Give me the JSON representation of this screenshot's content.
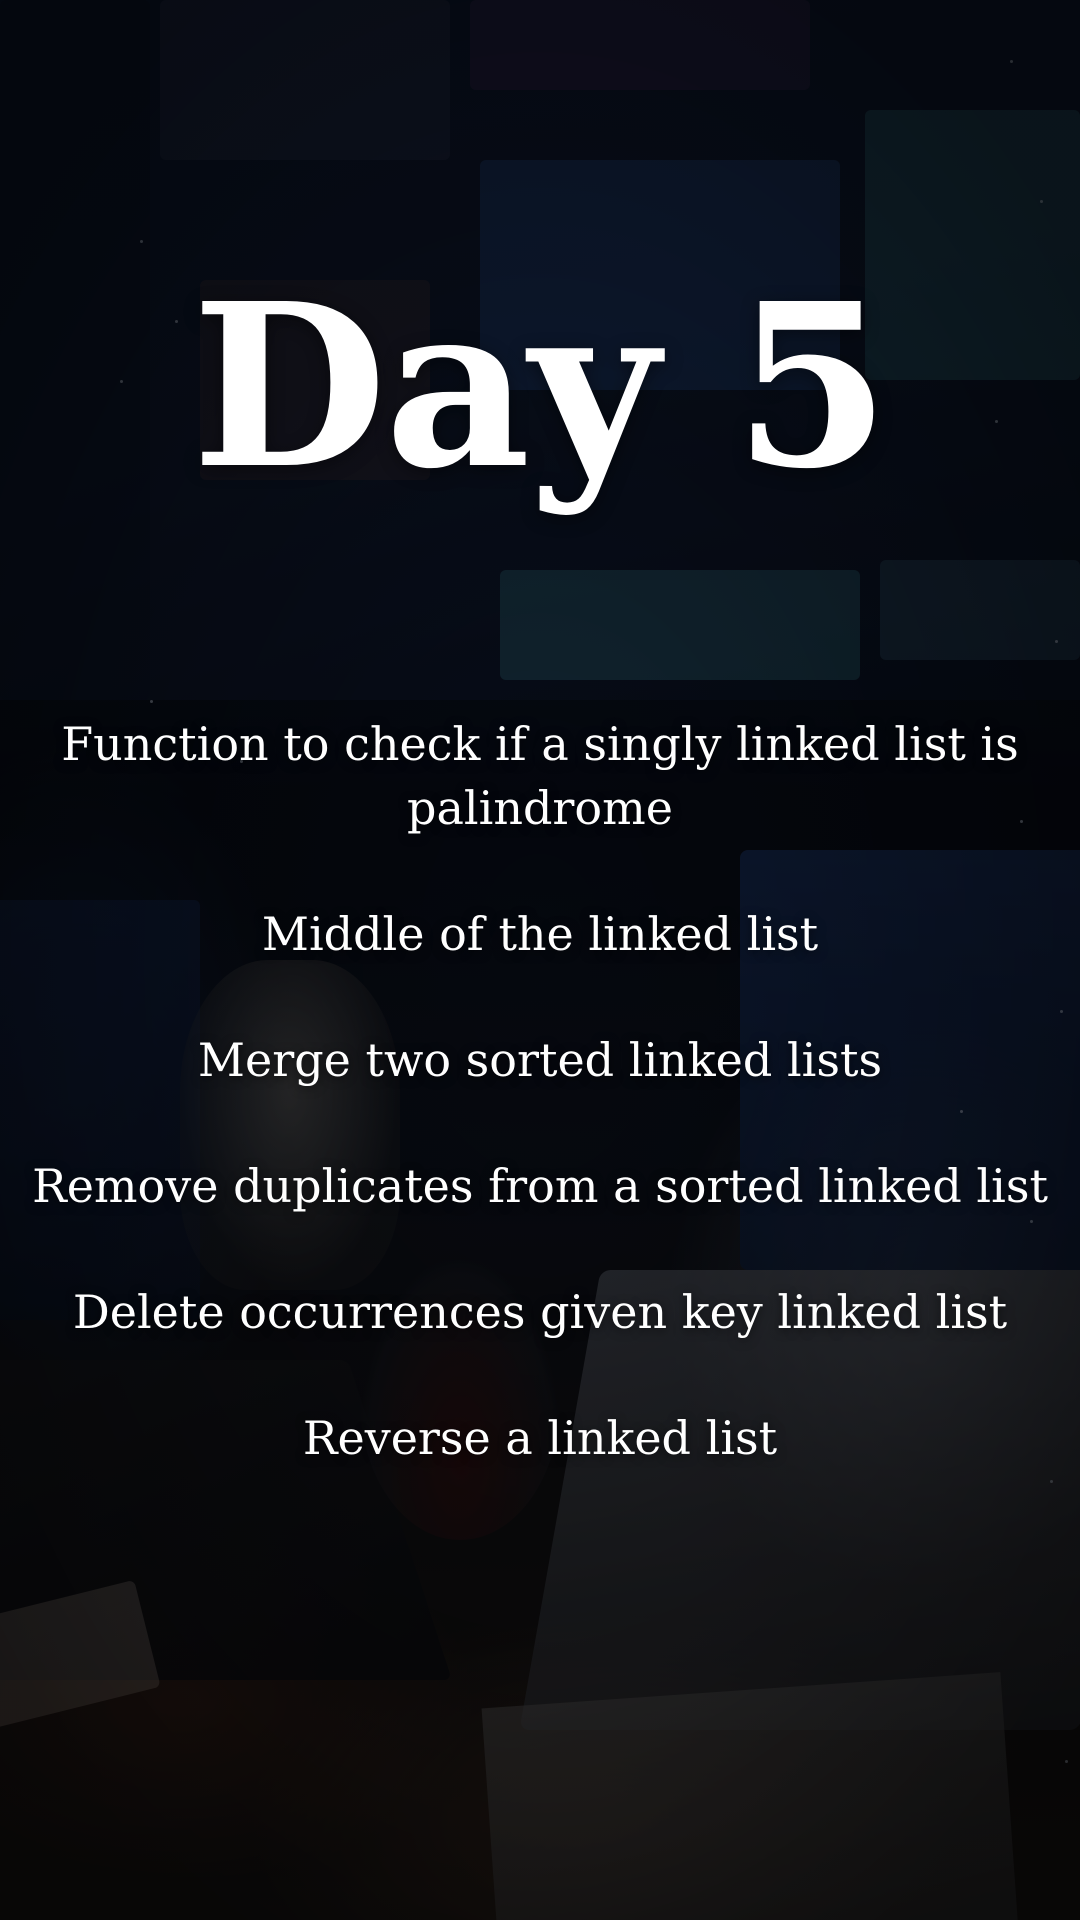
{
  "title": "Day 5",
  "topics": [
    "Function to check if a singly linked list is palindrome",
    "Middle of the linked list",
    "Merge two sorted linked lists",
    "Remove duplicates from a sorted linked list",
    "Delete occurrences given key linked list",
    "Reverse a linked list"
  ],
  "colors": {
    "text": "#ffffff",
    "background": "#05070c"
  }
}
